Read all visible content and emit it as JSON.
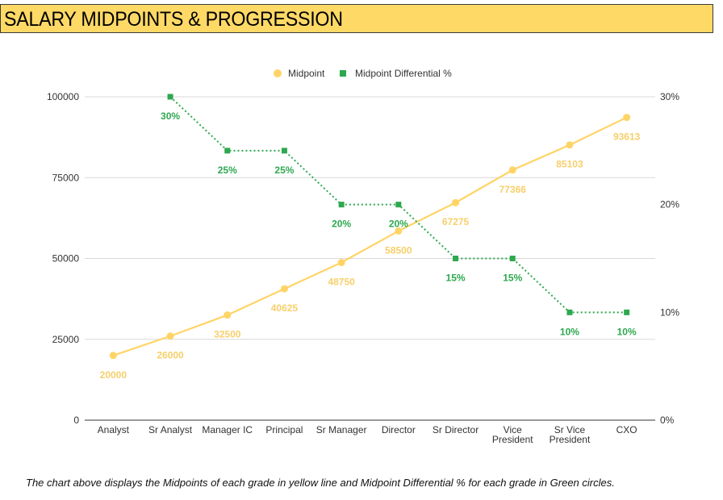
{
  "header": {
    "title": "SALARY MIDPOINTS & PROGRESSION"
  },
  "caption": "The chart above displays the Midpoints of each grade in yellow line and Midpoint Differential % for each grade in Green circles.",
  "chart_data": {
    "type": "line",
    "categories": [
      [
        "Analyst"
      ],
      [
        "Sr Analyst"
      ],
      [
        "Manager IC"
      ],
      [
        "Principal"
      ],
      [
        "Sr Manager"
      ],
      [
        "Director"
      ],
      [
        "Sr Director"
      ],
      [
        "Vice",
        "President"
      ],
      [
        "Sr Vice",
        "President"
      ],
      [
        "CXO"
      ]
    ],
    "series": [
      {
        "name": "Midpoint",
        "axis": "left",
        "color": "#ffd466",
        "label_color": "#f7cf6b",
        "marker": "circle",
        "line_style": "solid",
        "values": [
          20000,
          26000,
          32500,
          40625,
          48750,
          58500,
          67275,
          77366,
          85103,
          93613
        ],
        "labels": [
          "20000",
          "26000",
          "32500",
          "40625",
          "48750",
          "58500",
          "67275",
          "77366",
          "85103",
          "93613"
        ]
      },
      {
        "name": "Midpoint Differential %",
        "axis": "right",
        "color": "#2ea84f",
        "label_color": "#2ea84f",
        "marker": "square",
        "line_style": "dotted",
        "values": [
          null,
          30,
          25,
          25,
          20,
          20,
          15,
          15,
          10,
          10
        ],
        "labels": [
          "",
          "30%",
          "25%",
          "25%",
          "20%",
          "20%",
          "15%",
          "15%",
          "10%",
          "10%"
        ]
      }
    ],
    "y_left": {
      "min": 0,
      "max": 100000,
      "ticks": [
        0,
        25000,
        50000,
        75000,
        100000
      ],
      "tick_labels": [
        "0",
        "25000",
        "50000",
        "75000",
        "100000"
      ]
    },
    "y_right": {
      "min": 0,
      "max": 30,
      "ticks": [
        0,
        10,
        20,
        30
      ],
      "tick_labels": [
        "0%",
        "10%",
        "20%",
        "30%"
      ]
    },
    "grid": true,
    "legend_position": "top-center"
  }
}
